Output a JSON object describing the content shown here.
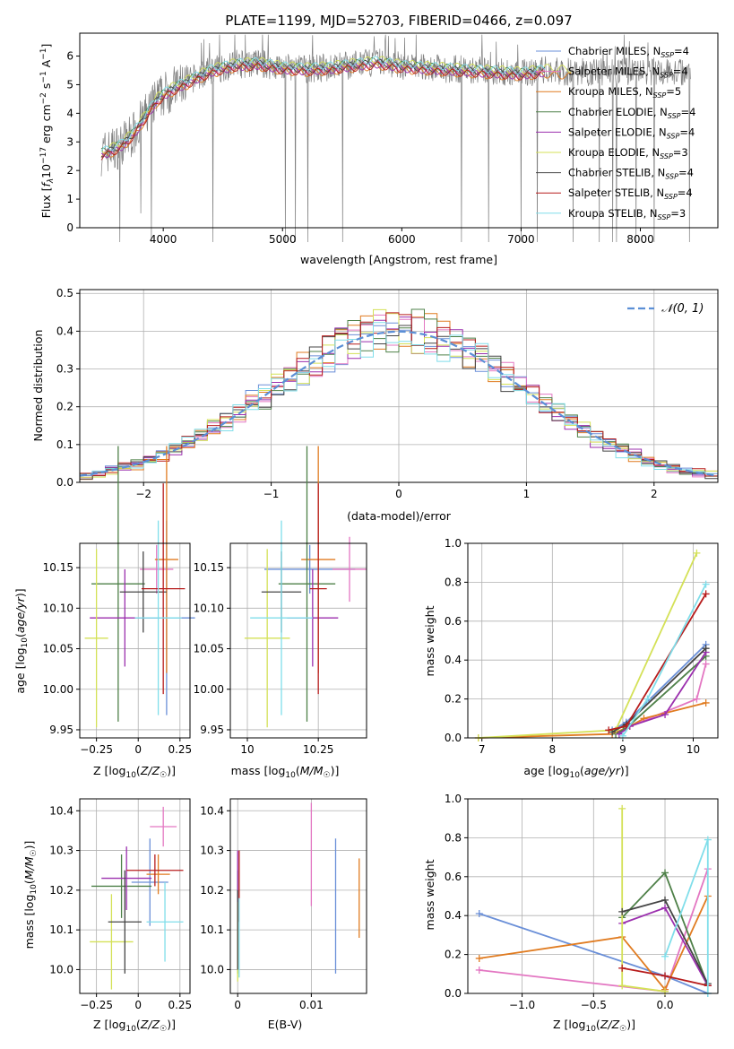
{
  "figure_title": "PLATE=1199, MJD=52703, FIBERID=0466, z=0.097",
  "models": [
    {
      "name": "Chabrier MILES",
      "nssp": "4",
      "color": "#6a8fd8"
    },
    {
      "name": "Salpeter MILES",
      "nssp": "4",
      "color": "#e377c2"
    },
    {
      "name": "Kroupa MILES",
      "nssp": "5",
      "color": "#e07b20"
    },
    {
      "name": "Chabrier ELODIE",
      "nssp": "4",
      "color": "#4e8048"
    },
    {
      "name": "Salpeter ELODIE",
      "nssp": "4",
      "color": "#9b2fae"
    },
    {
      "name": "Kroupa ELODIE",
      "nssp": "3",
      "color": "#d4e157"
    },
    {
      "name": "Chabrier STELIB",
      "nssp": "4",
      "color": "#444444"
    },
    {
      "name": "Salpeter STELIB",
      "nssp": "4",
      "color": "#b71c1c"
    },
    {
      "name": "Kroupa STELIB",
      "nssp": "3",
      "color": "#80deea"
    }
  ],
  "chart_data": [
    {
      "id": "spectrum",
      "type": "line",
      "xlabel": "wavelength [Angstrom, rest frame]",
      "ylabel": "Flux [f_λ10^-17 erg cm^-2 s^-1 A^-1]",
      "xlim": [
        3300,
        8650
      ],
      "ylim": [
        0,
        6.8
      ],
      "xticks": [
        4000,
        5000,
        6000,
        7000,
        8000
      ],
      "yticks": [
        0,
        1,
        2,
        3,
        4,
        5,
        6
      ],
      "legend_position": "right",
      "data_continuum": {
        "x": [
          3480,
          3550,
          3650,
          3750,
          3850,
          3950,
          4050,
          4200,
          4400,
          4600,
          4800,
          5000,
          5200,
          5400,
          5600,
          5800,
          6000,
          6200,
          6400,
          6600,
          6800,
          7000,
          7200,
          7400
        ],
        "y": [
          2.6,
          2.7,
          2.9,
          3.3,
          3.9,
          4.5,
          4.8,
          5.1,
          5.5,
          5.7,
          5.75,
          5.6,
          5.55,
          5.6,
          5.7,
          5.8,
          5.65,
          5.6,
          5.55,
          5.5,
          5.45,
          5.4,
          5.5,
          5.45
        ]
      },
      "model_offsets": [
        0.0,
        -0.05,
        -0.15,
        0.05,
        -0.1,
        0.1,
        -0.02,
        -0.12,
        0.08
      ]
    },
    {
      "id": "residuals",
      "type": "histogram",
      "xlabel": "(data-model)/error",
      "ylabel": "Normed distribution",
      "xlim": [
        -2.5,
        2.5
      ],
      "ylim": [
        0,
        0.51
      ],
      "xticks": [
        -2,
        -1,
        0,
        1,
        2
      ],
      "yticks": [
        0.0,
        0.1,
        0.2,
        0.3,
        0.4,
        0.5
      ],
      "bin_width": 0.1,
      "reference_curve": "N(0,1)",
      "grid": true,
      "legend_position": "top-right"
    },
    {
      "id": "age_vs_Z",
      "type": "errorbar",
      "xlabel": "Z [log10(Z/Z☉)]",
      "ylabel": "age [log10(age/yr)]",
      "xlim": [
        -0.35,
        0.31
      ],
      "ylim": [
        9.94,
        10.18
      ],
      "xticks": [
        -0.25,
        0.0,
        0.25
      ],
      "yticks": [
        9.95,
        10.0,
        10.05,
        10.1,
        10.15
      ],
      "points": [
        {
          "x": 0.17,
          "y": 10.088,
          "xerr": 0.17,
          "yerr": 0.12
        },
        {
          "x": 0.11,
          "y": 10.148,
          "xerr": 0.1,
          "yerr": 0.03
        },
        {
          "x": 0.17,
          "y": 10.16,
          "xerr": 0.07,
          "yerr": 0.14
        },
        {
          "x": -0.12,
          "y": 10.13,
          "xerr": 0.16,
          "yerr": 0.17
        },
        {
          "x": -0.08,
          "y": 10.088,
          "xerr": 0.21,
          "yerr": 0.06
        },
        {
          "x": -0.25,
          "y": 10.063,
          "xerr": 0.07,
          "yerr": 0.11
        },
        {
          "x": 0.03,
          "y": 10.12,
          "xerr": 0.14,
          "yerr": 0.05
        },
        {
          "x": 0.15,
          "y": 10.124,
          "xerr": 0.13,
          "yerr": 0.13
        },
        {
          "x": 0.12,
          "y": 10.088,
          "xerr": 0.14,
          "yerr": 0.12
        }
      ]
    },
    {
      "id": "age_vs_mass",
      "type": "errorbar",
      "xlabel": "mass [log10(M/M☉)]",
      "ylabel": "",
      "xlim": [
        9.94,
        10.42
      ],
      "ylim": [
        9.94,
        10.18
      ],
      "xticks": [
        10.0,
        10.25
      ],
      "yticks": [
        9.95,
        10.0,
        10.05,
        10.1,
        10.15
      ],
      "points": [
        {
          "x": 10.22,
          "y": 10.148,
          "xerr": 0.16,
          "yerr": 0.03
        },
        {
          "x": 10.36,
          "y": 10.148,
          "xerr": 0.06,
          "yerr": 0.04
        },
        {
          "x": 10.25,
          "y": 10.16,
          "xerr": 0.06,
          "yerr": 0.14
        },
        {
          "x": 10.21,
          "y": 10.13,
          "xerr": 0.1,
          "yerr": 0.17
        },
        {
          "x": 10.23,
          "y": 10.088,
          "xerr": 0.09,
          "yerr": 0.06
        },
        {
          "x": 10.07,
          "y": 10.063,
          "xerr": 0.08,
          "yerr": 0.11
        },
        {
          "x": 10.12,
          "y": 10.12,
          "xerr": 0.07,
          "yerr": 0.05
        },
        {
          "x": 10.25,
          "y": 10.124,
          "xerr": 0.03,
          "yerr": 0.13
        },
        {
          "x": 10.12,
          "y": 10.088,
          "xerr": 0.11,
          "yerr": 0.12
        }
      ]
    },
    {
      "id": "mass_weight_vs_age",
      "type": "line",
      "xlabel": "age [log10(age/yr)]",
      "ylabel": "mass weight",
      "xlim": [
        6.8,
        10.35
      ],
      "ylim": [
        0.0,
        1.0
      ],
      "xticks": [
        7,
        8,
        9,
        10
      ],
      "yticks": [
        0.0,
        0.2,
        0.4,
        0.6,
        0.8,
        1.0
      ],
      "series": [
        {
          "x": [
            8.85,
            9.05,
            10.18
          ],
          "y": [
            0.04,
            0.08,
            0.48
          ]
        },
        {
          "x": [
            8.95,
            9.1,
            10.05,
            10.18
          ],
          "y": [
            0.02,
            0.06,
            0.2,
            0.38
          ]
        },
        {
          "x": [
            6.95,
            8.85,
            9.1,
            9.3,
            10.18
          ],
          "y": [
            0.0,
            0.02,
            0.06,
            0.1,
            0.18
          ]
        },
        {
          "x": [
            8.9,
            9.05,
            10.18
          ],
          "y": [
            0.02,
            0.05,
            0.42
          ]
        },
        {
          "x": [
            8.95,
            9.1,
            9.6,
            10.18
          ],
          "y": [
            0.02,
            0.06,
            0.12,
            0.44
          ]
        },
        {
          "x": [
            6.95,
            8.9,
            10.05
          ],
          "y": [
            0.0,
            0.04,
            0.95
          ]
        },
        {
          "x": [
            8.85,
            9.05,
            10.18
          ],
          "y": [
            0.03,
            0.07,
            0.46
          ]
        },
        {
          "x": [
            8.8,
            9.05,
            10.18
          ],
          "y": [
            0.04,
            0.06,
            0.74
          ]
        },
        {
          "x": [
            9.0,
            9.35,
            10.18
          ],
          "y": [
            0.01,
            0.2,
            0.79
          ]
        }
      ]
    },
    {
      "id": "mass_vs_Z",
      "type": "errorbar",
      "xlabel": "Z [log10(Z/Z☉)]",
      "ylabel": "mass [log10(M/M☉)]",
      "xlim": [
        -0.35,
        0.31
      ],
      "ylim": [
        9.94,
        10.43
      ],
      "xticks": [
        -0.25,
        0.0,
        0.25
      ],
      "yticks": [
        10.0,
        10.1,
        10.2,
        10.3,
        10.4
      ],
      "points": [
        {
          "x": 0.07,
          "y": 10.22,
          "xerr": 0.11,
          "yerr": 0.11
        },
        {
          "x": 0.15,
          "y": 10.36,
          "xerr": 0.08,
          "yerr": 0.05
        },
        {
          "x": 0.12,
          "y": 10.24,
          "xerr": 0.07,
          "yerr": 0.05
        },
        {
          "x": -0.1,
          "y": 10.21,
          "xerr": 0.18,
          "yerr": 0.08
        },
        {
          "x": -0.07,
          "y": 10.23,
          "xerr": 0.15,
          "yerr": 0.08
        },
        {
          "x": -0.16,
          "y": 10.07,
          "xerr": 0.13,
          "yerr": 0.12
        },
        {
          "x": -0.08,
          "y": 10.12,
          "xerr": 0.1,
          "yerr": 0.13
        },
        {
          "x": 0.1,
          "y": 10.25,
          "xerr": 0.17,
          "yerr": 0.04
        },
        {
          "x": 0.16,
          "y": 10.12,
          "xerr": 0.11,
          "yerr": 0.1
        }
      ]
    },
    {
      "id": "mass_vs_EBV",
      "type": "errorbar",
      "xlabel": "E(B-V)",
      "ylabel": "",
      "xlim": [
        -0.001,
        0.0175
      ],
      "ylim": [
        9.94,
        10.43
      ],
      "xticks": [
        0.0,
        0.01
      ],
      "yticks": [
        10.0,
        10.1,
        10.2,
        10.3,
        10.4
      ],
      "points": [
        {
          "x": 0.0133,
          "y": 10.16,
          "xerr": 0.0,
          "yerr": 0.17
        },
        {
          "x": 0.01,
          "y": 10.29,
          "xerr": 0.0,
          "yerr": 0.13
        },
        {
          "x": 0.0165,
          "y": 10.18,
          "xerr": 0.0,
          "yerr": 0.1
        },
        {
          "x": 0.0,
          "y": 10.12,
          "xerr": 0.0,
          "yerr": 0.13
        },
        {
          "x": 0.0,
          "y": 10.2,
          "xerr": 0.0,
          "yerr": 0.1
        },
        {
          "x": 0.0,
          "y": 10.07,
          "xerr": 0.0,
          "yerr": 0.1
        },
        {
          "x": 0.0,
          "y": 10.1,
          "xerr": 0.0,
          "yerr": 0.1
        },
        {
          "x": 0.0002,
          "y": 10.21,
          "xerr": 0.0,
          "yerr": 0.09
        },
        {
          "x": 0.0002,
          "y": 10.08,
          "xerr": 0.0,
          "yerr": 0.1
        }
      ]
    },
    {
      "id": "mass_weight_vs_Z",
      "type": "line",
      "xlabel": "Z [log10(Z/Z☉)]",
      "ylabel": "mass weight",
      "xlim": [
        -1.38,
        0.37
      ],
      "ylim": [
        0.0,
        1.0
      ],
      "xticks": [
        -1.0,
        -0.5,
        0.0
      ],
      "yticks": [
        0.0,
        0.2,
        0.4,
        0.6,
        0.8,
        1.0
      ],
      "series": [
        {
          "x": [
            -1.3,
            0.0,
            0.3
          ],
          "y": [
            0.41,
            0.09,
            0.0
          ]
        },
        {
          "x": [
            -1.3,
            0.0,
            0.3
          ],
          "y": [
            0.12,
            0.01,
            0.64
          ]
        },
        {
          "x": [
            -1.3,
            -0.3,
            0.0,
            0.3
          ],
          "y": [
            0.18,
            0.29,
            0.02,
            0.5
          ]
        },
        {
          "x": [
            -0.3,
            0.0,
            0.3
          ],
          "y": [
            0.39,
            0.62,
            0.04
          ]
        },
        {
          "x": [
            -0.3,
            0.0,
            0.3
          ],
          "y": [
            0.36,
            0.44,
            0.04
          ]
        },
        {
          "x": [
            -0.3,
            -0.3,
            0.0
          ],
          "y": [
            0.95,
            0.04,
            0.01
          ]
        },
        {
          "x": [
            -0.3,
            0.0,
            0.3
          ],
          "y": [
            0.42,
            0.48,
            0.05
          ]
        },
        {
          "x": [
            -0.3,
            0.0,
            0.3
          ],
          "y": [
            0.13,
            0.09,
            0.04
          ]
        },
        {
          "x": [
            0.0,
            0.3,
            0.3
          ],
          "y": [
            0.19,
            0.79,
            0.0
          ]
        }
      ]
    }
  ]
}
